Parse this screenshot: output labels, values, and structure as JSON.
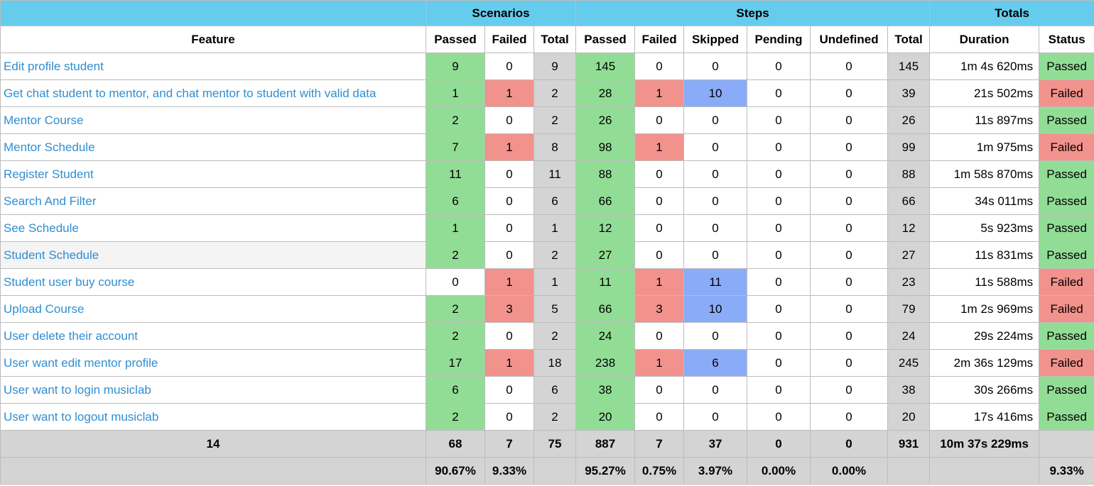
{
  "groups": {
    "scenarios": "Scenarios",
    "steps": "Steps",
    "totals": "Totals"
  },
  "columns": {
    "feature": "Feature",
    "sc_passed": "Passed",
    "sc_failed": "Failed",
    "sc_total": "Total",
    "st_passed": "Passed",
    "st_failed": "Failed",
    "st_skipped": "Skipped",
    "st_pending": "Pending",
    "st_undefined": "Undefined",
    "st_total": "Total",
    "duration": "Duration",
    "status": "Status"
  },
  "colors": {
    "header": "#66ccee",
    "passed": "#92dd96",
    "failed": "#f2928c",
    "skipped": "#8aacf8",
    "pending": "#f5f28f",
    "undefined": "#f5b975",
    "total": "#d4d4d4",
    "link": "#2f8ed1"
  },
  "rows": [
    {
      "feature": "Edit profile student",
      "sc": [
        "9",
        "0",
        "9"
      ],
      "st": [
        "145",
        "0",
        "0",
        "0",
        "0",
        "145"
      ],
      "duration": "1m 4s 620ms",
      "status": "Passed"
    },
    {
      "feature": "Get chat student to mentor, and chat mentor to student with valid data",
      "sc": [
        "1",
        "1",
        "2"
      ],
      "st": [
        "28",
        "1",
        "10",
        "0",
        "0",
        "39"
      ],
      "duration": "21s 502ms",
      "status": "Failed"
    },
    {
      "feature": "Mentor Course",
      "sc": [
        "2",
        "0",
        "2"
      ],
      "st": [
        "26",
        "0",
        "0",
        "0",
        "0",
        "26"
      ],
      "duration": "11s 897ms",
      "status": "Passed"
    },
    {
      "feature": "Mentor Schedule",
      "sc": [
        "7",
        "1",
        "8"
      ],
      "st": [
        "98",
        "1",
        "0",
        "0",
        "0",
        "99"
      ],
      "duration": "1m 975ms",
      "status": "Failed"
    },
    {
      "feature": "Register Student",
      "sc": [
        "11",
        "0",
        "11"
      ],
      "st": [
        "88",
        "0",
        "0",
        "0",
        "0",
        "88"
      ],
      "duration": "1m 58s 870ms",
      "status": "Passed"
    },
    {
      "feature": "Search And Filter",
      "sc": [
        "6",
        "0",
        "6"
      ],
      "st": [
        "66",
        "0",
        "0",
        "0",
        "0",
        "66"
      ],
      "duration": "34s 011ms",
      "status": "Passed"
    },
    {
      "feature": "See Schedule",
      "sc": [
        "1",
        "0",
        "1"
      ],
      "st": [
        "12",
        "0",
        "0",
        "0",
        "0",
        "12"
      ],
      "duration": "5s 923ms",
      "status": "Passed"
    },
    {
      "feature": "Student Schedule",
      "sc": [
        "2",
        "0",
        "2"
      ],
      "st": [
        "27",
        "0",
        "0",
        "0",
        "0",
        "27"
      ],
      "duration": "11s 831ms",
      "status": "Passed"
    },
    {
      "feature": "Student user buy course",
      "sc": [
        "0",
        "1",
        "1"
      ],
      "st": [
        "11",
        "1",
        "11",
        "0",
        "0",
        "23"
      ],
      "duration": "11s 588ms",
      "status": "Failed"
    },
    {
      "feature": "Upload Course",
      "sc": [
        "2",
        "3",
        "5"
      ],
      "st": [
        "66",
        "3",
        "10",
        "0",
        "0",
        "79"
      ],
      "duration": "1m 2s 969ms",
      "status": "Failed"
    },
    {
      "feature": "User delete their account",
      "sc": [
        "2",
        "0",
        "2"
      ],
      "st": [
        "24",
        "0",
        "0",
        "0",
        "0",
        "24"
      ],
      "duration": "29s 224ms",
      "status": "Passed"
    },
    {
      "feature": "User want edit mentor profile",
      "sc": [
        "17",
        "1",
        "18"
      ],
      "st": [
        "238",
        "1",
        "6",
        "0",
        "0",
        "245"
      ],
      "duration": "2m 36s 129ms",
      "status": "Failed"
    },
    {
      "feature": "User want to login musiclab",
      "sc": [
        "6",
        "0",
        "6"
      ],
      "st": [
        "38",
        "0",
        "0",
        "0",
        "0",
        "38"
      ],
      "duration": "30s 266ms",
      "status": "Passed"
    },
    {
      "feature": "User want to logout musiclab",
      "sc": [
        "2",
        "0",
        "2"
      ],
      "st": [
        "20",
        "0",
        "0",
        "0",
        "0",
        "20"
      ],
      "duration": "17s 416ms",
      "status": "Passed"
    }
  ],
  "totals": {
    "feature_count": "14",
    "sc": [
      "68",
      "7",
      "75"
    ],
    "st": [
      "887",
      "7",
      "37",
      "0",
      "0",
      "931"
    ],
    "duration": "10m 37s 229ms",
    "status": ""
  },
  "percentages": {
    "sc": [
      "90.67%",
      "9.33%",
      ""
    ],
    "st": [
      "95.27%",
      "0.75%",
      "3.97%",
      "0.00%",
      "0.00%",
      ""
    ],
    "duration": "",
    "status": "9.33%"
  }
}
